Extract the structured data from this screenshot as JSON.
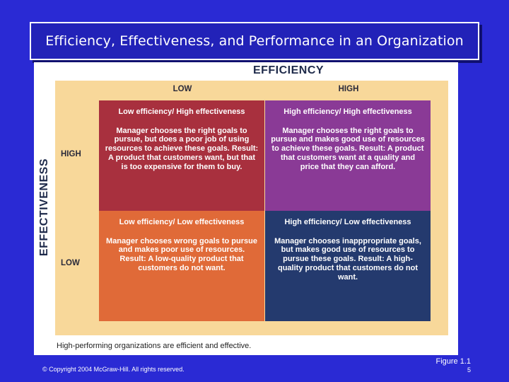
{
  "slide": {
    "title": "Efficiency, Effectiveness, and Performance in an Organization",
    "copyright": "© Copyright 2004 McGraw-Hill. All rights reserved.",
    "figure_label": "Figure 1.1",
    "page_number": "5"
  },
  "figure": {
    "top_axis": "EFFICIENCY",
    "side_axis": "EFFECTIVENESS",
    "columns": [
      "LOW",
      "HIGH"
    ],
    "rows": [
      "HIGH",
      "LOW"
    ],
    "quadrants": {
      "low_eff_high_effect": {
        "heading": "Low efficiency/ High effectiveness",
        "body": "Manager chooses the right goals to pursue, but does a poor job of using resources to achieve these goals. Result: A product that customers want, but that is too expensive for them to buy.",
        "color": "#a8303e"
      },
      "high_eff_high_effect": {
        "heading": "High efficiency/ High effectiveness",
        "body": "Manager chooses the right goals to pursue and makes good use of resources to achieve these goals. Result: A product that customers want at a quality and price that they can afford.",
        "color": "#8a3a96"
      },
      "low_eff_low_effect": {
        "heading": "Low efficiency/ Low effectiveness",
        "body": "Manager chooses wrong goals to pursue and makes poor use of resources. Result: A low-quality product that customers do not want.",
        "color": "#e06a38"
      },
      "high_eff_low_effect": {
        "heading": "High efficiency/ Low effectiveness",
        "body": "Manager chooses inapppropriate goals, but makes good use of resources to pursue these goals. Result: A high-quality product that customers do not want.",
        "color": "#243a6e"
      }
    },
    "caption": "High-performing organizations are efficient and effective."
  }
}
